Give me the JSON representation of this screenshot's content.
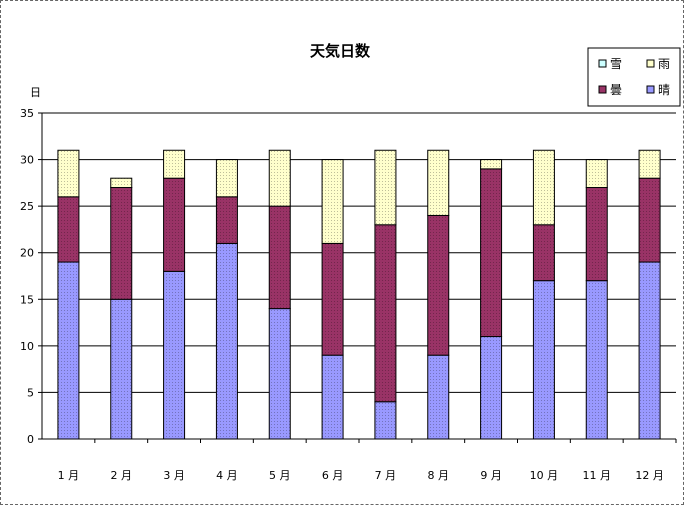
{
  "chart_data": {
    "type": "bar",
    "stacked": true,
    "title": "天気日数",
    "ylabel": "日",
    "xlabel": "",
    "ylim": [
      0,
      35
    ],
    "yticks": [
      0,
      5,
      10,
      15,
      20,
      25,
      30,
      35
    ],
    "grid": true,
    "legend_position": "top-right",
    "categories": [
      "1 月",
      "2 月",
      "3 月",
      "4 月",
      "5 月",
      "6 月",
      "7 月",
      "8 月",
      "9 月",
      "10 月",
      "11 月",
      "12 月"
    ],
    "series": [
      {
        "name": "晴",
        "color": "#9999ff",
        "values": [
          19,
          15,
          18,
          21,
          14,
          9,
          4,
          9,
          11,
          17,
          17,
          19
        ]
      },
      {
        "name": "曇",
        "color": "#993366",
        "values": [
          7,
          12,
          10,
          5,
          11,
          12,
          19,
          15,
          18,
          6,
          10,
          9
        ]
      },
      {
        "name": "雨",
        "color": "#ffffcc",
        "values": [
          5,
          1,
          3,
          4,
          6,
          9,
          8,
          7,
          1,
          8,
          3,
          3
        ]
      },
      {
        "name": "雪",
        "color": "#ccffff",
        "values": [
          0,
          0,
          0,
          0,
          0,
          0,
          0,
          0,
          0,
          0,
          0,
          0
        ]
      }
    ],
    "legend_order": [
      "雪",
      "雨",
      "曇",
      "晴"
    ]
  }
}
